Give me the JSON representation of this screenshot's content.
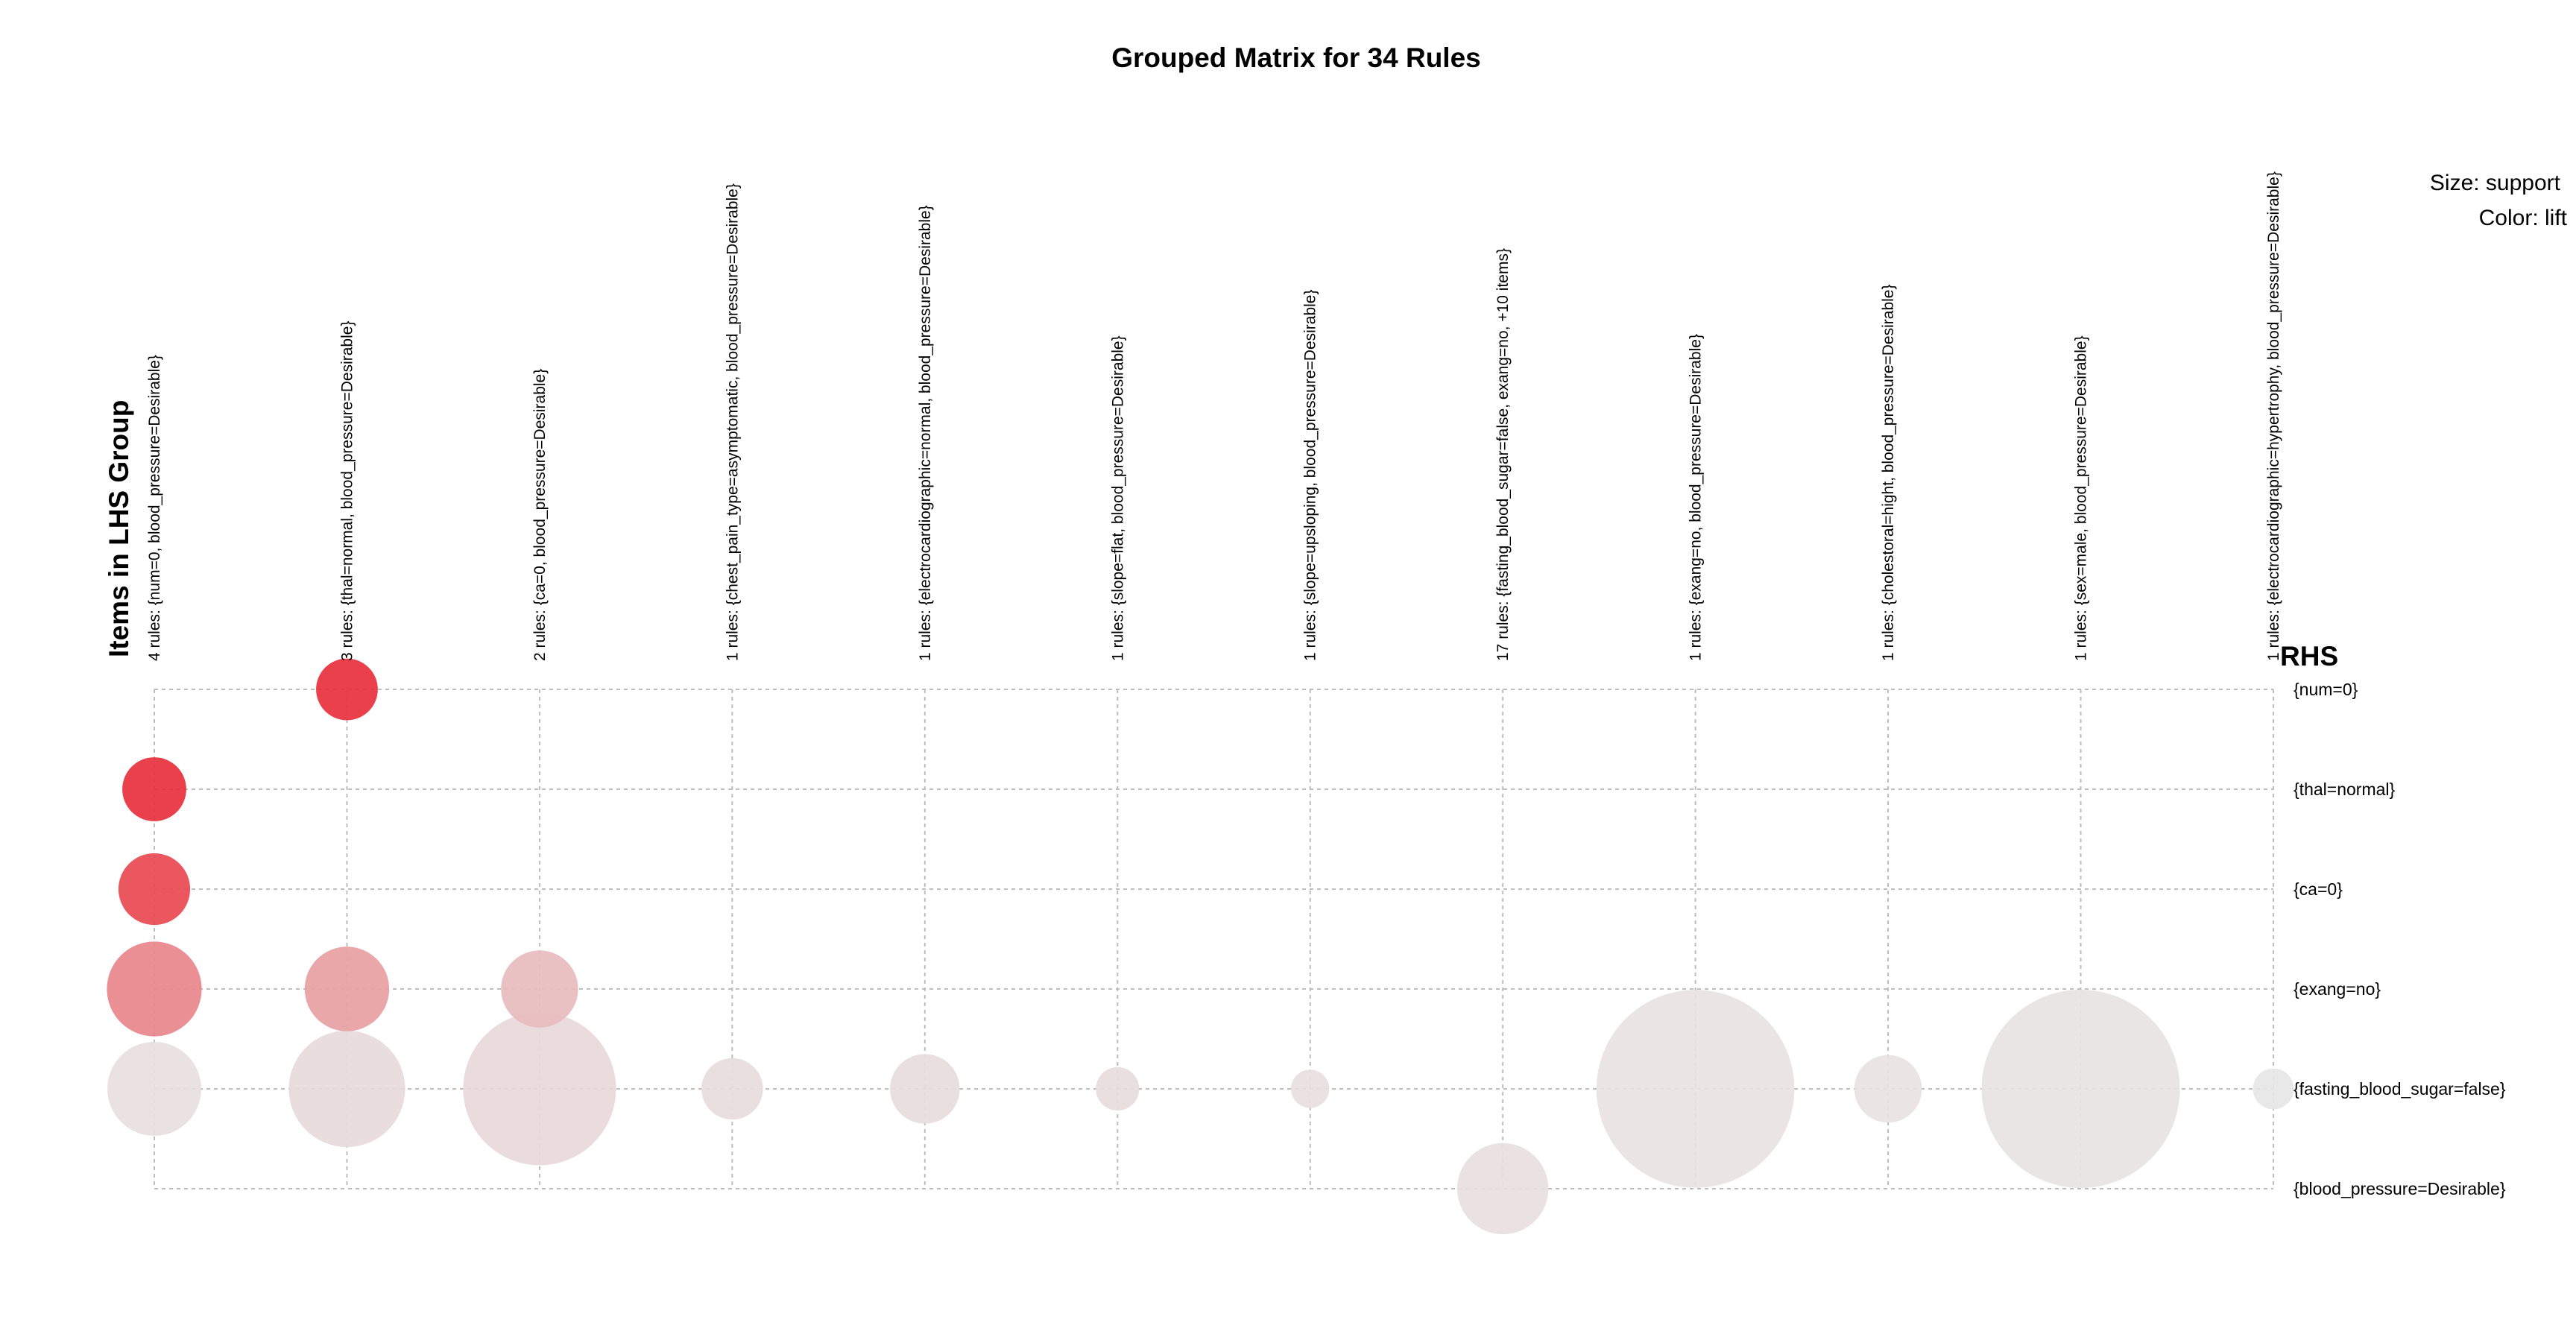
{
  "chart_data": {
    "type": "scatter",
    "title": "Grouped Matrix for 34 Rules",
    "xlabel": "Items in LHS Group",
    "ylabel": "RHS",
    "legend": {
      "size": "Size: support",
      "color": "Color: lift",
      "placement": "top-right"
    },
    "grid": true,
    "columns": [
      "4 rules: {num=0, blood_pressure=Desirable}",
      "3 rules: {thal=normal, blood_pressure=Desirable}",
      "2 rules: {ca=0, blood_pressure=Desirable}",
      "1 rules: {chest_pain_type=asymptomatic, blood_pressure=Desirable}",
      "1 rules: {electrocardiographic=normal, blood_pressure=Desirable}",
      "1 rules: {slope=flat, blood_pressure=Desirable}",
      "1 rules: {slope=upsloping, blood_pressure=Desirable}",
      "17 rules: {fasting_blood_sugar=false, exang=no, +10 items}",
      "1 rules: {exang=no, blood_pressure=Desirable}",
      "1 rules: {cholestoral=hight, blood_pressure=Desirable}",
      "1 rules: {sex=male, blood_pressure=Desirable}",
      "1 rules: {electrocardiographic=hypertrophy, blood_pressure=Desirable}"
    ],
    "rows": [
      "{num=0}",
      "{thal=normal}",
      "{ca=0}",
      "{exang=no}",
      "{fasting_blood_sugar=false}",
      "{blood_pressure=Desirable}"
    ],
    "points": [
      {
        "col": 1,
        "row": 0,
        "support": 0.091,
        "color": "#e8303c"
      },
      {
        "col": 0,
        "row": 1,
        "support": 0.098,
        "color": "#e8303c"
      },
      {
        "col": 0,
        "row": 2,
        "support": 0.123,
        "color": "#e84950"
      },
      {
        "col": 0,
        "row": 3,
        "support": 0.215,
        "color": "#e8868b"
      },
      {
        "col": 1,
        "row": 3,
        "support": 0.171,
        "color": "#e8a0a2"
      },
      {
        "col": 2,
        "row": 3,
        "support": 0.142,
        "color": "#e8bcbd"
      },
      {
        "col": 0,
        "row": 4,
        "support": 0.211,
        "color": "#e8e0e0"
      },
      {
        "col": 1,
        "row": 4,
        "support": 0.324,
        "color": "#e8dada"
      },
      {
        "col": 2,
        "row": 4,
        "support": 0.558,
        "color": "#e8d8d9"
      },
      {
        "col": 3,
        "row": 4,
        "support": 0.09,
        "color": "#e8dcdc"
      },
      {
        "col": 4,
        "row": 4,
        "support": 0.116,
        "color": "#e8dcdc"
      },
      {
        "col": 5,
        "row": 4,
        "support": 0.045,
        "color": "#e8dcdc"
      },
      {
        "col": 6,
        "row": 4,
        "support": 0.035,
        "color": "#e8e0e0"
      },
      {
        "col": 7,
        "row": 5,
        "support": 0.199,
        "color": "#e8e0e0"
      },
      {
        "col": 8,
        "row": 4,
        "support": 0.937,
        "color": "#e8e2e2"
      },
      {
        "col": 9,
        "row": 4,
        "support": 0.109,
        "color": "#e8e2e2"
      },
      {
        "col": 10,
        "row": 4,
        "support": 0.94,
        "color": "#e8e3e3"
      },
      {
        "col": 11,
        "row": 4,
        "support": 0.04,
        "color": "#e6e6e6"
      }
    ]
  }
}
